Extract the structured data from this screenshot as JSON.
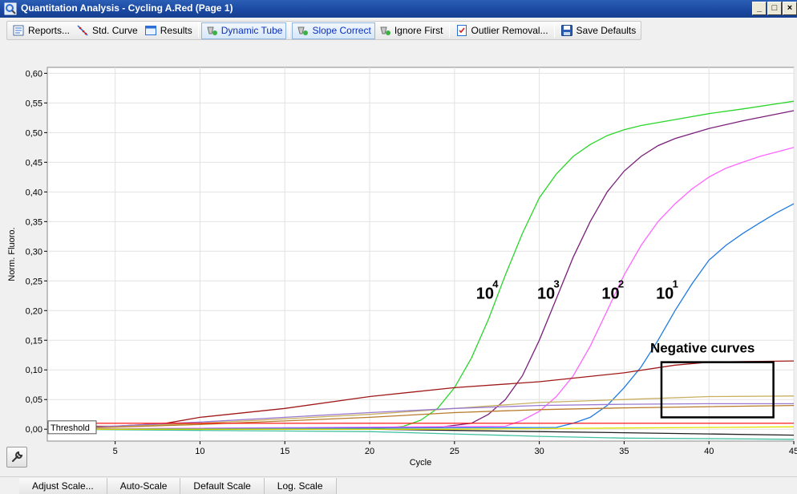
{
  "window": {
    "title": "Quantitation Analysis - Cycling A.Red (Page 1)",
    "icon": "magnifier-chart-icon",
    "title_bar_color": "#1a47a0",
    "controls": {
      "minimize": "_",
      "maximize": "□",
      "close": "×"
    }
  },
  "toolbar": {
    "items": [
      {
        "label": "Reports...",
        "icon": "report-icon"
      },
      {
        "label": "Std. Curve",
        "icon": "std-curve-icon"
      },
      {
        "label": "Results",
        "icon": "results-table-icon"
      },
      {
        "label": "Dynamic Tube",
        "icon": "dynamic-tube-icon",
        "active": true
      },
      {
        "label": "Slope Correct",
        "icon": "slope-correct-icon",
        "active": true
      },
      {
        "label": "Ignore First",
        "icon": "ignore-first-icon"
      },
      {
        "label": "Outlier Removal...",
        "icon": "outlier-removal-icon"
      },
      {
        "label": "Save Defaults",
        "icon": "save-icon"
      }
    ]
  },
  "chart_data": {
    "type": "line",
    "title": "",
    "xlabel": "Cycle",
    "ylabel": "Norm. Fluoro.",
    "xlim": [
      1,
      45
    ],
    "ylim": [
      -0.02,
      0.61
    ],
    "x_ticks": [
      5,
      10,
      15,
      20,
      25,
      30,
      35,
      40,
      45
    ],
    "x_tick_labels": [
      "5",
      "10",
      "15",
      "20",
      "25",
      "30",
      "35",
      "40",
      "45"
    ],
    "y_ticks": [
      0,
      0.05,
      0.1,
      0.15,
      0.2,
      0.25,
      0.3,
      0.35,
      0.4,
      0.45,
      0.5,
      0.55,
      0.6
    ],
    "y_tick_labels": [
      "0,00",
      "0,05",
      "0,10",
      "0,15",
      "0,20",
      "0,25",
      "0,30",
      "0,35",
      "0,40",
      "0,45",
      "0,50",
      "0,55",
      "0,60"
    ],
    "grid": true,
    "threshold": {
      "label": "Threshold",
      "value": 0.01,
      "color": "#ff0000"
    },
    "series": [
      {
        "color": "#2ad62a",
        "x": [
          1,
          20,
          22,
          23,
          24,
          25,
          26,
          27,
          28,
          29,
          30,
          31,
          32,
          33,
          34,
          35,
          36,
          38,
          40,
          42,
          45
        ],
        "y": [
          0,
          0,
          0.005,
          0.015,
          0.035,
          0.07,
          0.12,
          0.185,
          0.26,
          0.33,
          0.39,
          0.43,
          0.46,
          0.48,
          0.495,
          0.505,
          0.512,
          0.522,
          0.532,
          0.54,
          0.553
        ]
      },
      {
        "color": "#7a1f7a",
        "x": [
          1,
          24,
          26,
          27,
          28,
          29,
          30,
          31,
          32,
          33,
          34,
          35,
          36,
          37,
          38,
          40,
          42,
          45
        ],
        "y": [
          0,
          0.003,
          0.01,
          0.025,
          0.05,
          0.09,
          0.15,
          0.22,
          0.29,
          0.35,
          0.4,
          0.435,
          0.46,
          0.478,
          0.49,
          0.507,
          0.52,
          0.537
        ]
      },
      {
        "color": "#ff66ff",
        "x": [
          1,
          28,
          29,
          30,
          31,
          32,
          33,
          34,
          35,
          36,
          37,
          38,
          39,
          40,
          41,
          42,
          43,
          45
        ],
        "y": [
          0,
          0.005,
          0.015,
          0.03,
          0.055,
          0.09,
          0.14,
          0.2,
          0.26,
          0.31,
          0.35,
          0.38,
          0.405,
          0.425,
          0.44,
          0.45,
          0.46,
          0.475
        ]
      },
      {
        "color": "#1e7be0",
        "x": [
          1,
          31,
          32,
          33,
          34,
          35,
          36,
          37,
          38,
          39,
          40,
          41,
          42,
          43,
          44,
          45
        ],
        "y": [
          0,
          0.003,
          0.01,
          0.02,
          0.04,
          0.07,
          0.105,
          0.15,
          0.2,
          0.245,
          0.285,
          0.31,
          0.33,
          0.348,
          0.365,
          0.38
        ]
      },
      {
        "color": "#a01818",
        "x": [
          1,
          5,
          8,
          10,
          15,
          20,
          25,
          30,
          35,
          38,
          40,
          42,
          45
        ],
        "y": [
          0.005,
          0.005,
          0.01,
          0.02,
          0.035,
          0.055,
          0.07,
          0.08,
          0.095,
          0.108,
          0.113,
          0.114,
          0.115
        ]
      },
      {
        "color": "#c8b060",
        "x": [
          1,
          10,
          20,
          25,
          30,
          35,
          40,
          45
        ],
        "y": [
          0,
          0.01,
          0.025,
          0.035,
          0.045,
          0.05,
          0.055,
          0.056
        ]
      },
      {
        "color": "#9a7ad0",
        "x": [
          1,
          10,
          20,
          25,
          30,
          35,
          40,
          45
        ],
        "y": [
          0,
          0.012,
          0.028,
          0.035,
          0.04,
          0.042,
          0.043,
          0.043
        ]
      },
      {
        "color": "#b87a2a",
        "x": [
          1,
          10,
          20,
          25,
          30,
          35,
          40,
          45
        ],
        "y": [
          0,
          0.008,
          0.02,
          0.028,
          0.033,
          0.036,
          0.038,
          0.04
        ]
      },
      {
        "color": "#40c0a0",
        "x": [
          1,
          10,
          20,
          25,
          30,
          35,
          40,
          45
        ],
        "y": [
          0,
          -0.002,
          -0.004,
          -0.008,
          -0.012,
          -0.015,
          -0.016,
          -0.017
        ]
      },
      {
        "color": "#202020",
        "x": [
          1,
          10,
          20,
          25,
          30,
          35,
          40,
          45
        ],
        "y": [
          0,
          0,
          0,
          -0.002,
          -0.004,
          -0.006,
          -0.008,
          -0.01
        ]
      },
      {
        "color": "#e0e000",
        "x": [
          1,
          10,
          20,
          25,
          30,
          35,
          40,
          45
        ],
        "y": [
          0,
          0,
          0,
          0,
          0.001,
          0.002,
          0.003,
          0.004
        ]
      }
    ],
    "annotations": [
      {
        "base": "10",
        "exponent": "4",
        "x": 26.8,
        "y": 0.22
      },
      {
        "base": "10",
        "exponent": "3",
        "x": 30.4,
        "y": 0.22
      },
      {
        "base": "10",
        "exponent": "2",
        "x": 34.2,
        "y": 0.22
      },
      {
        "base": "10",
        "exponent": "1",
        "x": 37.4,
        "y": 0.22
      }
    ],
    "negative_label": "Negative curves",
    "negative_box": {
      "x": [
        37.2,
        43.8
      ],
      "y": [
        0.02,
        0.113
      ]
    }
  },
  "bottom_tabs": {
    "items": [
      "Adjust Scale...",
      "Auto-Scale",
      "Default Scale",
      "Log. Scale"
    ]
  },
  "tool_button": {
    "icon": "wrench-icon"
  }
}
